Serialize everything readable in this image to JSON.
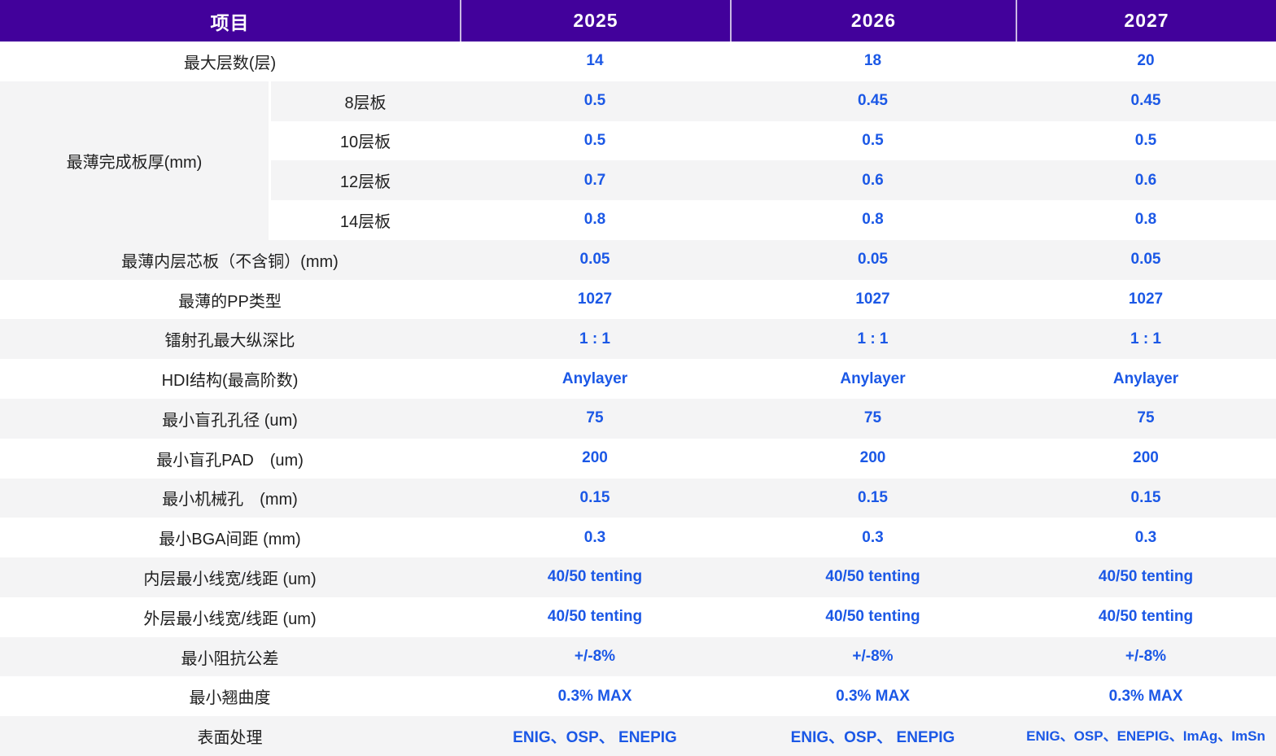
{
  "theme": {
    "header_bg": "#42019B",
    "header_text": "#FFFFFF",
    "value_blue": "#1B58E6",
    "stripe_gray": "#F4F4F5",
    "label_text": "#1F1F1F"
  },
  "col_header": {
    "item": "项目",
    "years": [
      "2025",
      "2026",
      "2027"
    ]
  },
  "rows": {
    "max_layers": {
      "label": "最大层数(层)",
      "values": [
        "14",
        "18",
        "20"
      ]
    },
    "min_finished_thickness": {
      "label": "最薄完成板厚(mm)",
      "sub": [
        {
          "label": "8层板",
          "values": [
            "0.5",
            "0.45",
            "0.45"
          ]
        },
        {
          "label": "10层板",
          "values": [
            "0.5",
            "0.5",
            "0.5"
          ]
        },
        {
          "label": "12层板",
          "values": [
            "0.7",
            "0.6",
            "0.6"
          ]
        },
        {
          "label": "14层板",
          "values": [
            "0.8",
            "0.8",
            "0.8"
          ]
        }
      ]
    },
    "min_inner_core": {
      "label": "最薄内层芯板（不含铜）(mm)",
      "values": [
        "0.05",
        "0.05",
        "0.05"
      ]
    },
    "thinnest_pp": {
      "label": "最薄的PP类型",
      "values": [
        "1027",
        "1027",
        "1027"
      ]
    },
    "laser_aspect": {
      "label": "镭射孔最大纵深比",
      "values": [
        "1 : 1",
        "1 : 1",
        "1 : 1"
      ]
    },
    "hdi_structure": {
      "label": "HDI结构(最高阶数)",
      "values": [
        "Anylayer",
        "Anylayer",
        "Anylayer"
      ]
    },
    "min_blind_via": {
      "label": "最小盲孔孔径 (um)",
      "values": [
        "75",
        "75",
        "75"
      ]
    },
    "min_blind_pad": {
      "label": "最小盲孔PAD　(um)",
      "values": [
        "200",
        "200",
        "200"
      ]
    },
    "min_mech_hole": {
      "label": "最小机械孔　(mm)",
      "values": [
        "0.15",
        "0.15",
        "0.15"
      ]
    },
    "min_bga_pitch": {
      "label": "最小BGA间距 (mm)",
      "values": [
        "0.3",
        "0.3",
        "0.3"
      ]
    },
    "inner_trace": {
      "label": "内层最小线宽/线距 (um)",
      "values": [
        "40/50 tenting",
        "40/50 tenting",
        "40/50 tenting"
      ]
    },
    "outer_trace": {
      "label": "外层最小线宽/线距 (um)",
      "values": [
        "40/50 tenting",
        "40/50 tenting",
        "40/50 tenting"
      ]
    },
    "impedance_tol": {
      "label": "最小阻抗公差",
      "values": [
        "+/-8%",
        "+/-8%",
        "+/-8%"
      ]
    },
    "warpage": {
      "label": "最小翘曲度",
      "values": [
        "0.3% MAX",
        "0.3% MAX",
        "0.3% MAX"
      ]
    },
    "surface_finish": {
      "label": "表面处理",
      "values": [
        "ENIG、OSP、 ENEPIG",
        "ENIG、OSP、 ENEPIG",
        "ENIG、OSP、ENEPIG、ImAg、ImSn"
      ]
    }
  },
  "chart_data": {
    "type": "table",
    "columns": [
      "项目",
      "2025",
      "2026",
      "2027"
    ],
    "rows": [
      [
        "最大层数(层)",
        "14",
        "18",
        "20"
      ],
      [
        "最薄完成板厚(mm) — 8层板",
        "0.5",
        "0.45",
        "0.45"
      ],
      [
        "最薄完成板厚(mm) — 10层板",
        "0.5",
        "0.5",
        "0.5"
      ],
      [
        "最薄完成板厚(mm) — 12层板",
        "0.7",
        "0.6",
        "0.6"
      ],
      [
        "最薄完成板厚(mm) — 14层板",
        "0.8",
        "0.8",
        "0.8"
      ],
      [
        "最薄内层芯板（不含铜）(mm)",
        "0.05",
        "0.05",
        "0.05"
      ],
      [
        "最薄的PP类型",
        "1027",
        "1027",
        "1027"
      ],
      [
        "镭射孔最大纵深比",
        "1 : 1",
        "1 : 1",
        "1 : 1"
      ],
      [
        "HDI结构(最高阶数)",
        "Anylayer",
        "Anylayer",
        "Anylayer"
      ],
      [
        "最小盲孔孔径 (um)",
        "75",
        "75",
        "75"
      ],
      [
        "最小盲孔PAD (um)",
        "200",
        "200",
        "200"
      ],
      [
        "最小机械孔 (mm)",
        "0.15",
        "0.15",
        "0.15"
      ],
      [
        "最小BGA间距 (mm)",
        "0.3",
        "0.3",
        "0.3"
      ],
      [
        "内层最小线宽/线距 (um)",
        "40/50 tenting",
        "40/50 tenting",
        "40/50 tenting"
      ],
      [
        "外层最小线宽/线距 (um)",
        "40/50 tenting",
        "40/50 tenting",
        "40/50 tenting"
      ],
      [
        "最小阻抗公差",
        "+/-8%",
        "+/-8%",
        "+/-8%"
      ],
      [
        "最小翘曲度",
        "0.3% MAX",
        "0.3% MAX",
        "0.3% MAX"
      ],
      [
        "表面处理",
        "ENIG、OSP、 ENEPIG",
        "ENIG、OSP、 ENEPIG",
        "ENIG、OSP、ENEPIG、ImAg、ImSn"
      ]
    ]
  }
}
